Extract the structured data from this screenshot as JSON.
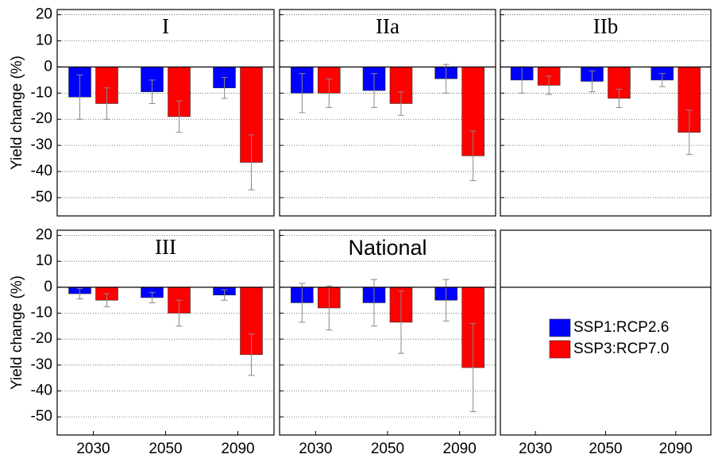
{
  "chart_data": [
    {
      "type": "bar",
      "title": "I",
      "ylabel": "Yield change (%)",
      "ylim": [
        -57,
        22
      ],
      "yticks": [
        20,
        10,
        0,
        -10,
        -20,
        -30,
        -40,
        -50
      ],
      "grid": true,
      "series": [
        {
          "color": "#0000ff",
          "values": [
            -11.5,
            -9.5,
            -8
          ],
          "errors": [
            8.5,
            4.5,
            4
          ]
        },
        {
          "color": "#ff0000",
          "values": [
            -14,
            -19,
            -36.5
          ],
          "errors": [
            6,
            6,
            10.5
          ]
        }
      ]
    },
    {
      "type": "bar",
      "title": "IIa",
      "ylim": [
        -57,
        22
      ],
      "yticks": [
        20,
        10,
        0,
        -10,
        -20,
        -30,
        -40,
        -50
      ],
      "grid": true,
      "series": [
        {
          "color": "#0000ff",
          "values": [
            -10,
            -9,
            -4.5
          ],
          "errors": [
            7.5,
            6.5,
            5.5
          ]
        },
        {
          "color": "#ff0000",
          "values": [
            -10,
            -14,
            -34
          ],
          "errors": [
            5.5,
            4.5,
            9.5
          ]
        }
      ]
    },
    {
      "type": "bar",
      "title": "IIb",
      "ylim": [
        -57,
        22
      ],
      "yticks": [
        20,
        10,
        0,
        -10,
        -20,
        -30,
        -40,
        -50
      ],
      "grid": true,
      "series": [
        {
          "color": "#0000ff",
          "values": [
            -5,
            -5.5,
            -5
          ],
          "errors": [
            5,
            4,
            2.5
          ]
        },
        {
          "color": "#ff0000",
          "values": [
            -7,
            -12,
            -25
          ],
          "errors": [
            3.5,
            3.5,
            8.5
          ]
        }
      ]
    },
    {
      "type": "bar",
      "title": "III",
      "ylabel": "Yield change (%)",
      "ylim": [
        -57,
        22
      ],
      "yticks": [
        20,
        10,
        0,
        -10,
        -20,
        -30,
        -40,
        -50
      ],
      "grid": true,
      "categories": [
        "2030",
        "2050",
        "2090"
      ],
      "series": [
        {
          "color": "#0000ff",
          "values": [
            -2.5,
            -4,
            -3
          ],
          "errors": [
            2,
            2,
            2
          ]
        },
        {
          "color": "#ff0000",
          "values": [
            -5,
            -10,
            -26
          ],
          "errors": [
            2.5,
            5,
            8
          ]
        }
      ]
    },
    {
      "type": "bar",
      "title": "National",
      "ylim": [
        -57,
        22
      ],
      "yticks": [
        20,
        10,
        0,
        -10,
        -20,
        -30,
        -40,
        -50
      ],
      "grid": true,
      "categories": [
        "2030",
        "2050",
        "2090"
      ],
      "series": [
        {
          "color": "#0000ff",
          "values": [
            -6,
            -6,
            -5
          ],
          "errors": [
            7.5,
            9,
            8
          ]
        },
        {
          "color": "#ff0000",
          "values": [
            -8,
            -13.5,
            -31
          ],
          "errors": [
            8.5,
            12,
            17
          ]
        }
      ]
    },
    {
      "type": "legend",
      "ylim": [
        -57,
        22
      ],
      "categories": [
        "2030",
        "2050",
        "2090"
      ],
      "legend": "right",
      "series": [
        {
          "name": "SSP1:RCP2.6",
          "color": "#0000ff"
        },
        {
          "name": "SSP3:RCP7.0",
          "color": "#ff0000"
        }
      ]
    }
  ]
}
